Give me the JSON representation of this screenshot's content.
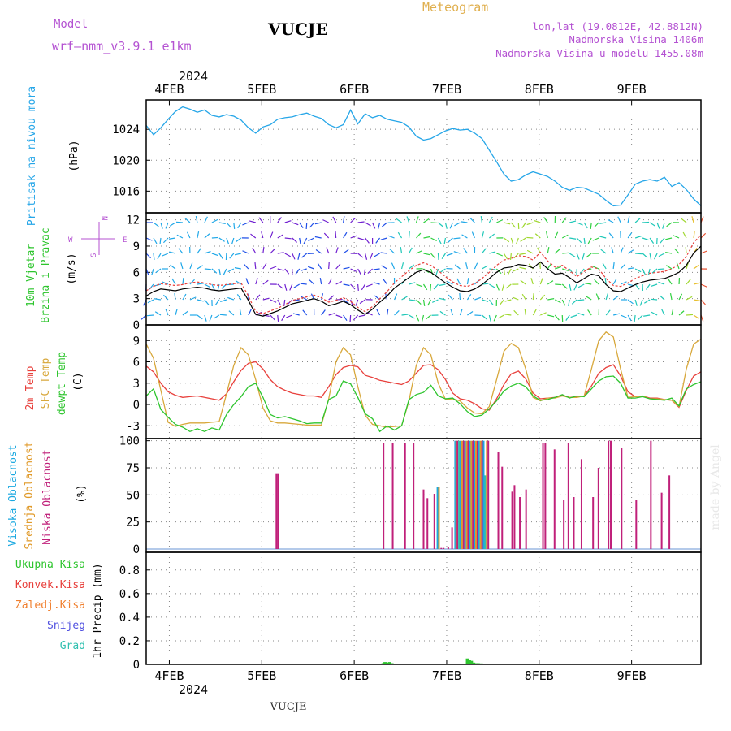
{
  "header": {
    "model_label": "Model",
    "model_name": "wrf–nmm_v3.9.1  e1km",
    "station": "VUCJE",
    "meteogram": "Meteogram",
    "lonlat": "lon,lat (19.0812E, 42.8812N)",
    "altitude": "Nadmorska Visina 1406m",
    "model_altitude": "Nadmorska Visina u modelu 1455.08m"
  },
  "footer": {
    "station": "VUCJE",
    "credit": "made by Angel"
  },
  "colors": {
    "pressure": "#26a6e8",
    "temp2m": "#e8403c",
    "sfc": "#d8a83c",
    "dewpt": "#2ec52e",
    "high_cloud": "#1aa8e0",
    "mid_cloud": "#e09a2a",
    "low_cloud": "#c0207a",
    "total_precip": "#2ec52e",
    "conv_precip": "#e8403c",
    "frz_precip": "#f08030",
    "snow": "#5050e0",
    "hail": "#30c0b0",
    "wind_speed": "#000000",
    "gust": "#e8403c"
  },
  "time_axis": {
    "top_year": "2024",
    "bottom_year": "2024",
    "days": [
      "4FEB",
      "5FEB",
      "6FEB",
      "7FEB",
      "8FEB",
      "9FEB"
    ],
    "start_hour_offset": -6,
    "end_hour_offset": 138
  },
  "chart_data": [
    {
      "type": "line",
      "id": "pressure",
      "ylabel_1": "Pritisak na nivou mora",
      "unit": "(hPa)",
      "yticks": [
        1016,
        1020,
        1024
      ],
      "ylim": [
        1013.2,
        1027.8
      ],
      "series": [
        {
          "color_key": "pressure",
          "values": [
            1024.5,
            1023.3,
            1024.2,
            1025.3,
            1026.3,
            1026.9,
            1026.6,
            1026.2,
            1026.5,
            1025.8,
            1025.6,
            1025.9,
            1025.7,
            1025.2,
            1024.2,
            1023.5,
            1024.3,
            1024.6,
            1025.3,
            1025.5,
            1025.6,
            1025.9,
            1026.1,
            1025.7,
            1025.4,
            1024.6,
            1024.2,
            1024.6,
            1026.5,
            1024.7,
            1026.0,
            1025.5,
            1025.8,
            1025.3,
            1025.1,
            1024.9,
            1024.3,
            1023.1,
            1022.6,
            1022.8,
            1023.3,
            1023.8,
            1024.1,
            1023.9,
            1024.0,
            1023.5,
            1022.8,
            1021.3,
            1019.8,
            1018.2,
            1017.3,
            1017.5,
            1018.1,
            1018.5,
            1018.2,
            1017.9,
            1017.3,
            1016.5,
            1016.1,
            1016.5,
            1016.4,
            1016.0,
            1015.6,
            1014.8,
            1014.1,
            1014.2,
            1015.5,
            1016.9,
            1017.3,
            1017.5,
            1017.3,
            1017.8,
            1016.6,
            1017.1,
            1016.2,
            1015.0,
            1014.1
          ]
        }
      ]
    },
    {
      "type": "barbs",
      "id": "wind",
      "ylabel_1": "10m Vjetar",
      "ylabel_2": "Brzina i Pravac",
      "unit": "(m/s)",
      "compass": {
        "w": "W",
        "e": "E",
        "n": "N",
        "s": "S"
      },
      "yticks": [
        0,
        3,
        6,
        9,
        12
      ],
      "ylim": [
        0,
        12.8
      ],
      "series": [
        {
          "name_key": "speed",
          "color_key": "wind_speed",
          "values": [
            3.3,
            3.8,
            4.1,
            4.0,
            3.9,
            4.1,
            4.2,
            4.3,
            4.2,
            4.0,
            3.9,
            4.0,
            4.1,
            4.2,
            2.8,
            1.2,
            1.0,
            1.3,
            1.6,
            2.0,
            2.4,
            2.6,
            2.8,
            3.0,
            2.7,
            2.2,
            2.4,
            2.7,
            2.3,
            1.7,
            1.2,
            1.8,
            2.6,
            3.3,
            4.2,
            4.8,
            5.4,
            6.0,
            6.3,
            6.0,
            5.4,
            4.8,
            4.3,
            3.9,
            3.8,
            4.1,
            4.6,
            5.3,
            6.0,
            6.5,
            6.6,
            6.9,
            6.8,
            6.5,
            7.2,
            6.4,
            5.8,
            5.9,
            5.4,
            4.8,
            5.3,
            5.8,
            5.6,
            4.6,
            3.9,
            3.8,
            4.2,
            4.6,
            4.9,
            5.1,
            5.2,
            5.3,
            5.6,
            6.0,
            6.8,
            8.2,
            9.0
          ]
        },
        {
          "name_key": "gust",
          "color_key": "gust",
          "values": [
            3.9,
            4.4,
            4.7,
            4.6,
            4.5,
            4.6,
            4.8,
            4.9,
            4.8,
            4.6,
            4.5,
            4.6,
            4.7,
            4.8,
            3.3,
            1.5,
            1.3,
            1.6,
            1.9,
            2.3,
            2.8,
            3.0,
            3.2,
            3.4,
            3.1,
            2.6,
            2.8,
            3.1,
            2.7,
            2.0,
            1.5,
            2.1,
            3.0,
            3.8,
            4.8,
            5.5,
            6.2,
            6.8,
            7.1,
            6.8,
            6.2,
            5.5,
            4.9,
            4.5,
            4.4,
            4.7,
            5.3,
            6.0,
            6.8,
            7.4,
            7.6,
            7.9,
            7.8,
            7.4,
            8.3,
            7.3,
            6.6,
            6.8,
            6.2,
            5.5,
            6.1,
            6.6,
            6.4,
            5.3,
            4.5,
            4.4,
            4.8,
            5.3,
            5.6,
            5.9,
            6.0,
            6.1,
            6.4,
            6.9,
            7.8,
            9.4,
            10.3
          ]
        }
      ]
    },
    {
      "type": "line",
      "id": "temperature",
      "ylabel_1": "2m Temp",
      "ylabel_2": "SFC Temp",
      "ylabel_3": "dewpt Temp",
      "unit": "(C)",
      "yticks": [
        -3,
        0,
        3,
        6,
        9
      ],
      "ylim": [
        -4.8,
        11.2
      ],
      "series": [
        {
          "name_key": "temp2m",
          "color_key": "temp2m",
          "values": [
            5.4,
            4.6,
            3.0,
            1.8,
            1.3,
            1.0,
            1.1,
            1.2,
            1.0,
            0.8,
            0.6,
            1.5,
            3.2,
            4.8,
            5.8,
            6.0,
            5.0,
            3.5,
            2.5,
            2.0,
            1.6,
            1.4,
            1.2,
            1.2,
            1.0,
            2.5,
            4.2,
            5.2,
            5.5,
            5.3,
            4.1,
            3.8,
            3.4,
            3.2,
            3.0,
            2.8,
            3.3,
            4.4,
            5.5,
            5.6,
            4.9,
            3.5,
            1.6,
            0.8,
            0.6,
            0.1,
            -0.6,
            -0.8,
            0.8,
            2.8,
            4.3,
            4.7,
            3.6,
            1.6,
            0.8,
            0.9,
            1.0,
            1.3,
            1.0,
            1.1,
            1.2,
            2.6,
            4.4,
            5.2,
            5.6,
            4.0,
            1.8,
            1.1,
            1.2,
            0.9,
            0.9,
            0.7,
            0.6,
            -0.4,
            2.0,
            4.0,
            4.6
          ]
        },
        {
          "name_key": "sfc",
          "color_key": "sfc",
          "values": [
            8.5,
            6.5,
            2.0,
            -2.5,
            -3.1,
            -2.8,
            -2.6,
            -2.6,
            -2.6,
            -2.5,
            -2.4,
            1.5,
            5.5,
            8.0,
            7.0,
            3.5,
            -0.5,
            -2.3,
            -2.6,
            -2.6,
            -2.7,
            -2.8,
            -2.9,
            -2.9,
            -2.9,
            0.8,
            6.0,
            8.0,
            7.0,
            2.5,
            -1.5,
            -2.8,
            -3.0,
            -3.2,
            -3.1,
            -3.0,
            0.5,
            5.5,
            8.0,
            7.0,
            3.0,
            0.7,
            0.8,
            0.5,
            -0.5,
            -1.2,
            -1.3,
            -0.3,
            3.5,
            7.5,
            8.6,
            8.0,
            5.0,
            1.0,
            0.5,
            0.9,
            0.9,
            1.2,
            1.0,
            1.0,
            1.2,
            5.0,
            9.0,
            10.2,
            9.5,
            5.0,
            1.0,
            1.1,
            1.2,
            0.8,
            0.8,
            0.7,
            0.6,
            -0.3,
            5.0,
            8.5,
            9.2
          ]
        },
        {
          "name_key": "dewpt",
          "color_key": "dewpt",
          "values": [
            1.2,
            2.2,
            -0.7,
            -1.8,
            -2.8,
            -3.2,
            -3.8,
            -3.4,
            -3.8,
            -3.3,
            -3.6,
            -1.4,
            0.0,
            1.1,
            2.5,
            3.0,
            1.0,
            -1.4,
            -1.9,
            -1.7,
            -2.0,
            -2.3,
            -2.7,
            -2.6,
            -2.6,
            0.7,
            1.2,
            3.3,
            2.9,
            1.0,
            -1.3,
            -2.0,
            -3.8,
            -3.0,
            -3.6,
            -3.0,
            0.7,
            1.4,
            1.7,
            2.7,
            1.2,
            0.8,
            0.9,
            0.1,
            -1.0,
            -1.7,
            -1.5,
            -0.6,
            0.5,
            1.9,
            2.6,
            3.0,
            2.5,
            1.2,
            0.6,
            0.7,
            1.0,
            1.4,
            0.9,
            1.2,
            1.1,
            2.2,
            3.3,
            3.9,
            4.0,
            3.0,
            0.9,
            0.9,
            1.1,
            0.8,
            0.7,
            0.6,
            0.9,
            -0.2,
            2.2,
            2.8,
            3.2
          ]
        }
      ]
    },
    {
      "type": "bar",
      "id": "clouds",
      "ylabel_1": "Visoka Oblacnost",
      "ylabel_2": "Srednja Oblacnost",
      "ylabel_3": "Niska Oblacnost",
      "unit": "(%)",
      "yticks": [
        0,
        25,
        50,
        75,
        100
      ],
      "ylim": [
        -3,
        102
      ],
      "bars": [
        {
          "h": 27.8,
          "v": 70,
          "c": "low_cloud"
        },
        {
          "h": 28.2,
          "v": 70,
          "c": "low_cloud"
        },
        {
          "h": 55.6,
          "v": 98,
          "c": "low_cloud"
        },
        {
          "h": 58.0,
          "v": 98,
          "c": "low_cloud"
        },
        {
          "h": 61.2,
          "v": 98,
          "c": "low_cloud"
        },
        {
          "h": 63.4,
          "v": 98,
          "c": "low_cloud"
        },
        {
          "h": 66.0,
          "v": 55,
          "c": "low_cloud"
        },
        {
          "h": 67.0,
          "v": 47,
          "c": "low_cloud"
        },
        {
          "h": 68.8,
          "v": 51,
          "c": "low_cloud"
        },
        {
          "h": 69.6,
          "v": 57,
          "c": "high_cloud"
        },
        {
          "h": 70.0,
          "v": 57,
          "c": "mid_cloud"
        },
        {
          "h": 70.6,
          "v": 1,
          "c": "low_cloud"
        },
        {
          "h": 71.2,
          "v": 1,
          "c": "low_cloud"
        },
        {
          "h": 72.4,
          "v": 2,
          "c": "low_cloud"
        },
        {
          "h": 73.4,
          "v": 20,
          "c": "low_cloud"
        },
        {
          "h": 74.2,
          "v": 100,
          "c": "high_cloud"
        },
        {
          "h": 74.5,
          "v": 100,
          "c": "mid_cloud"
        },
        {
          "h": 74.8,
          "v": 100,
          "c": "low_cloud"
        },
        {
          "h": 75.2,
          "v": 100,
          "c": "hail"
        },
        {
          "h": 75.6,
          "v": 100,
          "c": "high_cloud"
        },
        {
          "h": 76.0,
          "v": 100,
          "c": "mid_cloud"
        },
        {
          "h": 76.4,
          "v": 100,
          "c": "low_cloud"
        },
        {
          "h": 76.8,
          "v": 100,
          "c": "high_cloud"
        },
        {
          "h": 77.2,
          "v": 100,
          "c": "mid_cloud"
        },
        {
          "h": 77.6,
          "v": 100,
          "c": "low_cloud"
        },
        {
          "h": 78.0,
          "v": 100,
          "c": "high_cloud"
        },
        {
          "h": 78.4,
          "v": 100,
          "c": "mid_cloud"
        },
        {
          "h": 78.8,
          "v": 100,
          "c": "low_cloud"
        },
        {
          "h": 79.2,
          "v": 100,
          "c": "high_cloud"
        },
        {
          "h": 79.6,
          "v": 100,
          "c": "mid_cloud"
        },
        {
          "h": 80.0,
          "v": 100,
          "c": "low_cloud"
        },
        {
          "h": 80.4,
          "v": 100,
          "c": "high_cloud"
        },
        {
          "h": 80.8,
          "v": 100,
          "c": "mid_cloud"
        },
        {
          "h": 81.2,
          "v": 100,
          "c": "low_cloud"
        },
        {
          "h": 81.6,
          "v": 100,
          "c": "high_cloud"
        },
        {
          "h": 82.0,
          "v": 68,
          "c": "hail"
        },
        {
          "h": 82.4,
          "v": 100,
          "c": "mid_cloud"
        },
        {
          "h": 82.8,
          "v": 100,
          "c": "low_cloud"
        },
        {
          "h": 85.4,
          "v": 90,
          "c": "low_cloud"
        },
        {
          "h": 86.4,
          "v": 76,
          "c": "low_cloud"
        },
        {
          "h": 89.0,
          "v": 53,
          "c": "low_cloud"
        },
        {
          "h": 89.6,
          "v": 59,
          "c": "low_cloud"
        },
        {
          "h": 91.0,
          "v": 48,
          "c": "low_cloud"
        },
        {
          "h": 92.6,
          "v": 55,
          "c": "low_cloud"
        },
        {
          "h": 97.0,
          "v": 98,
          "c": "low_cloud"
        },
        {
          "h": 97.6,
          "v": 98,
          "c": "low_cloud"
        },
        {
          "h": 100.0,
          "v": 92,
          "c": "low_cloud"
        },
        {
          "h": 102.4,
          "v": 45,
          "c": "low_cloud"
        },
        {
          "h": 103.6,
          "v": 98,
          "c": "low_cloud"
        },
        {
          "h": 105.0,
          "v": 48,
          "c": "low_cloud"
        },
        {
          "h": 107.0,
          "v": 83,
          "c": "low_cloud"
        },
        {
          "h": 110.0,
          "v": 48,
          "c": "low_cloud"
        },
        {
          "h": 111.4,
          "v": 75,
          "c": "low_cloud"
        },
        {
          "h": 114.0,
          "v": 100,
          "c": "low_cloud"
        },
        {
          "h": 114.6,
          "v": 100,
          "c": "low_cloud"
        },
        {
          "h": 117.4,
          "v": 93,
          "c": "low_cloud"
        },
        {
          "h": 121.2,
          "v": 45,
          "c": "low_cloud"
        },
        {
          "h": 125.0,
          "v": 100,
          "c": "low_cloud"
        },
        {
          "h": 127.8,
          "v": 52,
          "c": "low_cloud"
        },
        {
          "h": 129.8,
          "v": 68,
          "c": "low_cloud"
        }
      ]
    },
    {
      "type": "bar",
      "id": "precip",
      "ylabel_1": "Ukupna  Kisa",
      "ylabel_2": "Konvek.Kisa",
      "ylabel_3": "Zaledj.Kisa",
      "ylabel_4": "Snijeg",
      "ylabel_5": "Grad",
      "unit": "1hr Precip (mm)",
      "yticks": [
        0,
        0.2,
        0.4,
        0.6,
        0.8
      ],
      "ylim": [
        0,
        0.95
      ],
      "bars": [
        {
          "h": 55.5,
          "v": 0.01,
          "c": "total_precip"
        },
        {
          "h": 56.0,
          "v": 0.02,
          "c": "total_precip"
        },
        {
          "h": 56.6,
          "v": 0.015,
          "c": "total_precip"
        },
        {
          "h": 57.2,
          "v": 0.02,
          "c": "total_precip"
        },
        {
          "h": 57.8,
          "v": 0.01,
          "c": "total_precip"
        },
        {
          "h": 77.4,
          "v": 0.05,
          "c": "total_precip"
        },
        {
          "h": 77.9,
          "v": 0.04,
          "c": "total_precip"
        },
        {
          "h": 78.4,
          "v": 0.03,
          "c": "total_precip"
        },
        {
          "h": 79.0,
          "v": 0.015,
          "c": "total_precip"
        },
        {
          "h": 79.6,
          "v": 0.01,
          "c": "total_precip"
        },
        {
          "h": 80.2,
          "v": 0.01,
          "c": "total_precip"
        },
        {
          "h": 81.0,
          "v": 0.008,
          "c": "total_precip"
        }
      ]
    }
  ]
}
